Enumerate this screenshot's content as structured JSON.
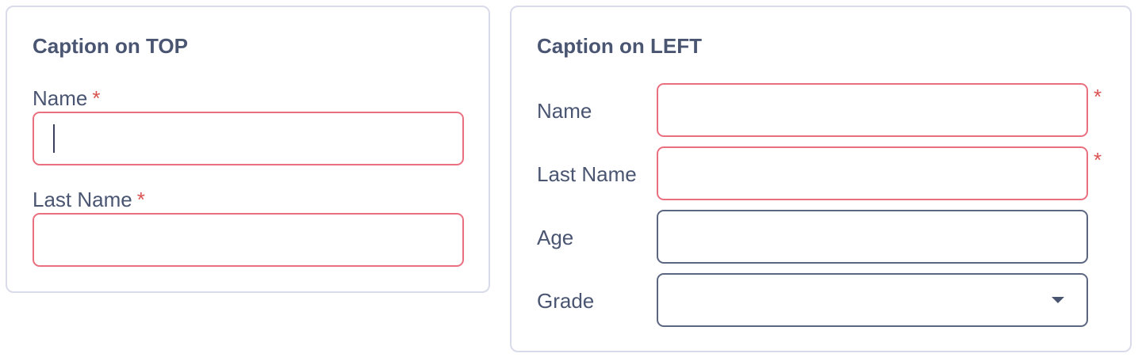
{
  "top_form": {
    "title": "Caption on TOP",
    "fields": [
      {
        "label": "Name",
        "required_mark": "*",
        "value": "",
        "placeholder": ""
      },
      {
        "label": "Last Name",
        "required_mark": "*",
        "value": "",
        "placeholder": ""
      }
    ]
  },
  "left_form": {
    "title": "Caption on LEFT",
    "fields": [
      {
        "label": "Name",
        "required_mark": "*",
        "value": "",
        "placeholder": ""
      },
      {
        "label": "Last Name",
        "required_mark": "*",
        "value": "",
        "placeholder": ""
      },
      {
        "label": "Age",
        "value": "",
        "placeholder": ""
      },
      {
        "label": "Grade",
        "selected": "",
        "icon": "caret-down-icon"
      }
    ]
  },
  "colors": {
    "required_border": "#e9707f",
    "default_border": "#5b6680",
    "required_mark": "#d9534f",
    "panel_border": "#d9dbea",
    "text": "#4a5572"
  }
}
